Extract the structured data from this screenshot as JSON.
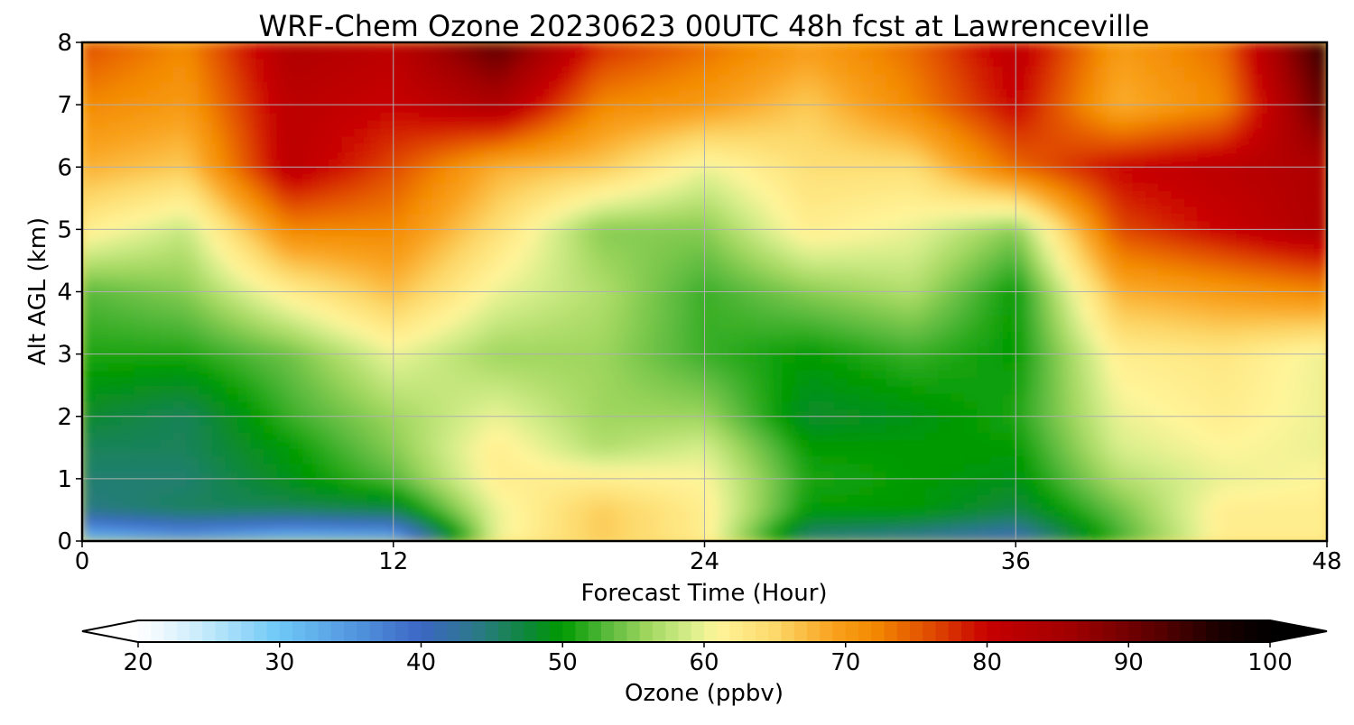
{
  "chart_data": {
    "type": "heatmap",
    "title": "WRF-Chem Ozone  20230623 00UTC 48h fcst at Lawrenceville",
    "xlabel": "Forecast Time (Hour)",
    "ylabel": "Alt AGL (km)",
    "xlim": [
      0,
      48
    ],
    "ylim": [
      0,
      8
    ],
    "xticks": [
      0,
      12,
      24,
      36,
      48
    ],
    "yticks": [
      0,
      1,
      2,
      3,
      4,
      5,
      6,
      7,
      8
    ],
    "grid": true,
    "colorbar": {
      "label": "Ozone  (ppbv)",
      "min": 20,
      "max": 100,
      "ticks": [
        20,
        30,
        40,
        50,
        60,
        70,
        80,
        90,
        100
      ],
      "extend": "both",
      "stops": [
        {
          "v": 20,
          "color": "#ffffff"
        },
        {
          "v": 24,
          "color": "#cfeefc"
        },
        {
          "v": 30,
          "color": "#6ec8f7"
        },
        {
          "v": 36,
          "color": "#4f8fdb"
        },
        {
          "v": 40,
          "color": "#3c66c4"
        },
        {
          "v": 44,
          "color": "#2a7a86"
        },
        {
          "v": 48,
          "color": "#0a8a2e"
        },
        {
          "v": 50,
          "color": "#009a00"
        },
        {
          "v": 53,
          "color": "#55b83a"
        },
        {
          "v": 56,
          "color": "#9fd65e"
        },
        {
          "v": 59,
          "color": "#d7ee8c"
        },
        {
          "v": 61,
          "color": "#fff59a"
        },
        {
          "v": 65,
          "color": "#fdd86a"
        },
        {
          "v": 69,
          "color": "#f9a320"
        },
        {
          "v": 72,
          "color": "#f38a00"
        },
        {
          "v": 76,
          "color": "#e04b00"
        },
        {
          "v": 80,
          "color": "#c80000"
        },
        {
          "v": 86,
          "color": "#a00000"
        },
        {
          "v": 92,
          "color": "#5a0000"
        },
        {
          "v": 96,
          "color": "#200000"
        },
        {
          "v": 100,
          "color": "#000000"
        }
      ]
    },
    "x": [
      0,
      4,
      8,
      12,
      16,
      20,
      24,
      28,
      32,
      36,
      40,
      44,
      48
    ],
    "y": [
      0,
      0.5,
      1,
      1.5,
      2,
      3,
      4,
      5,
      6,
      7,
      8
    ],
    "z": [
      [
        30,
        33,
        30,
        31,
        60,
        66,
        62,
        44,
        42,
        40,
        52,
        62,
        62
      ],
      [
        44,
        46,
        46,
        47,
        60,
        66,
        62,
        50,
        50,
        47,
        54,
        62,
        62
      ],
      [
        45,
        45,
        49,
        53,
        62,
        62,
        61,
        51,
        50,
        49,
        57,
        60,
        61
      ],
      [
        46,
        46,
        50,
        55,
        62,
        57,
        59,
        50,
        50,
        50,
        59,
        61,
        60
      ],
      [
        48,
        46,
        52,
        56,
        60,
        56,
        56,
        48,
        49,
        51,
        60,
        62,
        60
      ],
      [
        51,
        51,
        54,
        60,
        56,
        56,
        52,
        50,
        52,
        50,
        62,
        63,
        60
      ],
      [
        53,
        55,
        62,
        67,
        60,
        57,
        52,
        55,
        57,
        50,
        68,
        70,
        72
      ],
      [
        62,
        58,
        72,
        72,
        64,
        55,
        55,
        62,
        60,
        55,
        76,
        80,
        84
      ],
      [
        68,
        66,
        82,
        76,
        68,
        66,
        60,
        64,
        64,
        74,
        80,
        82,
        84
      ],
      [
        72,
        70,
        82,
        80,
        84,
        72,
        70,
        66,
        72,
        80,
        68,
        72,
        92
      ],
      [
        76,
        72,
        84,
        82,
        92,
        78,
        74,
        70,
        74,
        82,
        70,
        74,
        96
      ]
    ]
  }
}
